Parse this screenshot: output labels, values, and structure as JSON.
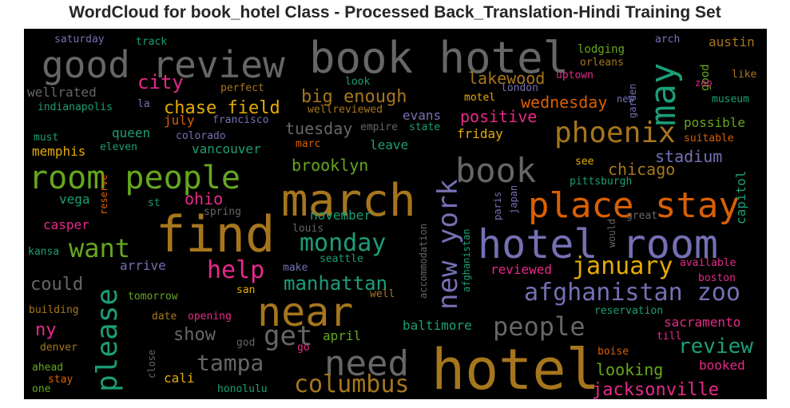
{
  "title": "WordCloud for book_hotel Class - Processed Back_Translation-Hindi Training Set",
  "chart_data": {
    "type": "wordcloud",
    "title": "WordCloud for book_hotel Class - Processed Back_Translation-Hindi Training Set",
    "background": "#000000",
    "colormap": "Dark2",
    "words": [
      {
        "text": "hotel",
        "weight": 1.0,
        "color": "#a6761d"
      },
      {
        "text": "find",
        "weight": 0.9,
        "color": "#a6761d"
      },
      {
        "text": "book hotel",
        "weight": 0.87,
        "color": "#666666"
      },
      {
        "text": "march",
        "weight": 0.85,
        "color": "#a6761d"
      },
      {
        "text": "hotel room",
        "weight": 0.8,
        "color": "#7570b3"
      },
      {
        "text": "near",
        "weight": 0.77,
        "color": "#a6761d"
      },
      {
        "text": "good review",
        "weight": 0.72,
        "color": "#666666"
      },
      {
        "text": "place stay",
        "weight": 0.68,
        "color": "#d95f02"
      },
      {
        "text": "room people",
        "weight": 0.65,
        "color": "#66a61e"
      },
      {
        "text": "need",
        "weight": 0.63,
        "color": "#666666"
      },
      {
        "text": "book",
        "weight": 0.62,
        "color": "#666666"
      },
      {
        "text": "may",
        "weight": 0.61,
        "color": "#1b9e77"
      },
      {
        "text": "phoenix",
        "weight": 0.56,
        "color": "#a6761d"
      },
      {
        "text": "please",
        "weight": 0.53,
        "color": "#1b9e77"
      },
      {
        "text": "new york",
        "weight": 0.52,
        "color": "#7570b3"
      },
      {
        "text": "afghanistan zoo",
        "weight": 0.47,
        "color": "#7570b3"
      },
      {
        "text": "want",
        "weight": 0.47,
        "color": "#66a61e"
      },
      {
        "text": "people",
        "weight": 0.46,
        "color": "#666666"
      },
      {
        "text": "get",
        "weight": 0.46,
        "color": "#666666"
      },
      {
        "text": "january",
        "weight": 0.44,
        "color": "#e6ab02"
      },
      {
        "text": "columbus",
        "weight": 0.44,
        "color": "#a6761d"
      },
      {
        "text": "help",
        "weight": 0.44,
        "color": "#e7298a"
      },
      {
        "text": "monday",
        "weight": 0.43,
        "color": "#1b9e77"
      },
      {
        "text": "tampa",
        "weight": 0.42,
        "color": "#666666"
      },
      {
        "text": "review",
        "weight": 0.41,
        "color": "#1b9e77"
      },
      {
        "text": "manhattan",
        "weight": 0.39,
        "color": "#1b9e77"
      },
      {
        "text": "jacksonville",
        "weight": 0.39,
        "color": "#e7298a"
      },
      {
        "text": "city",
        "weight": 0.39,
        "color": "#e7298a"
      },
      {
        "text": "big enough",
        "weight": 0.38,
        "color": "#a6761d"
      },
      {
        "text": "chase field",
        "weight": 0.38,
        "color": "#e6ab02"
      },
      {
        "text": "lakewood",
        "weight": 0.36,
        "color": "#a6761d"
      },
      {
        "text": "looking",
        "weight": 0.36,
        "color": "#66a61e"
      },
      {
        "text": "positive",
        "weight": 0.35,
        "color": "#e7298a"
      },
      {
        "text": "wednesday",
        "weight": 0.35,
        "color": "#d95f02"
      },
      {
        "text": "tuesday",
        "weight": 0.35,
        "color": "#666666"
      },
      {
        "text": "ny",
        "weight": 0.35,
        "color": "#e7298a"
      },
      {
        "text": "could",
        "weight": 0.35,
        "color": "#666666"
      },
      {
        "text": "stadium",
        "weight": 0.34,
        "color": "#7570b3"
      },
      {
        "text": "chicago",
        "weight": 0.34,
        "color": "#a6761d"
      },
      {
        "text": "show",
        "weight": 0.34,
        "color": "#666666"
      },
      {
        "text": "ohio",
        "weight": 0.34,
        "color": "#e7298a"
      },
      {
        "text": "brooklyn",
        "weight": 0.32,
        "color": "#66a61e"
      },
      {
        "text": "austin",
        "weight": 0.3,
        "color": "#a6761d"
      },
      {
        "text": "good",
        "weight": 0.3,
        "color": "#66a61e"
      },
      {
        "text": "reviewed",
        "weight": 0.3,
        "color": "#e7298a"
      },
      {
        "text": "baltimore",
        "weight": 0.3,
        "color": "#1b9e77"
      },
      {
        "text": "sacramento",
        "weight": 0.3,
        "color": "#e7298a"
      },
      {
        "text": "booked",
        "weight": 0.3,
        "color": "#e7298a"
      },
      {
        "text": "capitol",
        "weight": 0.3,
        "color": "#1b9e77"
      },
      {
        "text": "possible",
        "weight": 0.28,
        "color": "#66a61e"
      },
      {
        "text": "evans",
        "weight": 0.28,
        "color": "#7570b3"
      },
      {
        "text": "leave",
        "weight": 0.28,
        "color": "#1b9e77"
      },
      {
        "text": "friday",
        "weight": 0.28,
        "color": "#e6ab02"
      },
      {
        "text": "queen",
        "weight": 0.28,
        "color": "#1b9e77"
      },
      {
        "text": "memphis",
        "weight": 0.28,
        "color": "#e6ab02"
      },
      {
        "text": "vancouver",
        "weight": 0.28,
        "color": "#1b9e77"
      },
      {
        "text": "wellrated",
        "weight": 0.28,
        "color": "#666666"
      },
      {
        "text": "vega",
        "weight": 0.28,
        "color": "#1b9e77"
      },
      {
        "text": "casper",
        "weight": 0.28,
        "color": "#e7298a"
      },
      {
        "text": "arrive",
        "weight": 0.28,
        "color": "#7570b3"
      },
      {
        "text": "november",
        "weight": 0.28,
        "color": "#1b9e77"
      },
      {
        "text": "april",
        "weight": 0.28,
        "color": "#66a61e"
      },
      {
        "text": "cali",
        "weight": 0.28,
        "color": "#e6ab02"
      },
      {
        "text": "july",
        "weight": 0.27,
        "color": "#d95f02"
      },
      {
        "text": "lodging",
        "weight": 0.25,
        "color": "#66a61e"
      },
      {
        "text": "orleans",
        "weight": 0.25,
        "color": "#a6761d"
      },
      {
        "text": "uptown",
        "weight": 0.25,
        "color": "#e7298a"
      },
      {
        "text": "garden",
        "weight": 0.25,
        "color": "#7570b3"
      },
      {
        "text": "museum",
        "weight": 0.25,
        "color": "#1b9e77"
      },
      {
        "text": "like",
        "weight": 0.25,
        "color": "#a6761d"
      },
      {
        "text": "zoo",
        "weight": 0.25,
        "color": "#e7298a"
      },
      {
        "text": "arch",
        "weight": 0.25,
        "color": "#7570b3"
      },
      {
        "text": "suitable",
        "weight": 0.25,
        "color": "#d95f02"
      },
      {
        "text": "pittsburgh",
        "weight": 0.25,
        "color": "#1b9e77"
      },
      {
        "text": "available",
        "weight": 0.25,
        "color": "#e7298a"
      },
      {
        "text": "boston",
        "weight": 0.25,
        "color": "#e7298a"
      },
      {
        "text": "reservation",
        "weight": 0.25,
        "color": "#1b9e77"
      },
      {
        "text": "till",
        "weight": 0.25,
        "color": "#e7298a"
      },
      {
        "text": "boise",
        "weight": 0.25,
        "color": "#d95f02"
      },
      {
        "text": "see",
        "weight": 0.25,
        "color": "#e6ab02"
      },
      {
        "text": "great",
        "weight": 0.25,
        "color": "#666666"
      },
      {
        "text": "new",
        "weight": 0.25,
        "color": "#7570b3"
      },
      {
        "text": "would",
        "weight": 0.25,
        "color": "#666666"
      },
      {
        "text": "paris",
        "weight": 0.25,
        "color": "#7570b3"
      },
      {
        "text": "japan",
        "weight": 0.25,
        "color": "#7570b3"
      },
      {
        "text": "afghanistan",
        "weight": 0.25,
        "color": "#1b9e77"
      },
      {
        "text": "accommodation",
        "weight": 0.25,
        "color": "#666666"
      },
      {
        "text": "motel",
        "weight": 0.25,
        "color": "#e6ab02"
      },
      {
        "text": "london",
        "weight": 0.25,
        "color": "#7570b3"
      },
      {
        "text": "look",
        "weight": 0.25,
        "color": "#1b9e77"
      },
      {
        "text": "wellreviewed",
        "weight": 0.25,
        "color": "#a6761d"
      },
      {
        "text": "empire",
        "weight": 0.25,
        "color": "#666666"
      },
      {
        "text": "state",
        "weight": 0.25,
        "color": "#1b9e77"
      },
      {
        "text": "marc",
        "weight": 0.25,
        "color": "#d95f02"
      },
      {
        "text": "saturday",
        "weight": 0.25,
        "color": "#7570b3"
      },
      {
        "text": "track",
        "weight": 0.25,
        "color": "#1b9e77"
      },
      {
        "text": "perfect",
        "weight": 0.25,
        "color": "#a6761d"
      },
      {
        "text": "indianapolis",
        "weight": 0.25,
        "color": "#1b9e77"
      },
      {
        "text": "la",
        "weight": 0.25,
        "color": "#7570b3"
      },
      {
        "text": "francisco",
        "weight": 0.25,
        "color": "#7570b3"
      },
      {
        "text": "must",
        "weight": 0.25,
        "color": "#1b9e77"
      },
      {
        "text": "eleven",
        "weight": 0.25,
        "color": "#1b9e77"
      },
      {
        "text": "colorado",
        "weight": 0.25,
        "color": "#7570b3"
      },
      {
        "text": "reserve",
        "weight": 0.25,
        "color": "#d95f02"
      },
      {
        "text": "st",
        "weight": 0.25,
        "color": "#1b9e77"
      },
      {
        "text": "spring",
        "weight": 0.25,
        "color": "#666666"
      },
      {
        "text": "kansa",
        "weight": 0.25,
        "color": "#1b9e77"
      },
      {
        "text": "louis",
        "weight": 0.25,
        "color": "#666666"
      },
      {
        "text": "seattle",
        "weight": 0.25,
        "color": "#1b9e77"
      },
      {
        "text": "make",
        "weight": 0.25,
        "color": "#7570b3"
      },
      {
        "text": "san",
        "weight": 0.25,
        "color": "#e6ab02"
      },
      {
        "text": "well",
        "weight": 0.25,
        "color": "#a6761d"
      },
      {
        "text": "tomorrow",
        "weight": 0.25,
        "color": "#66a61e"
      },
      {
        "text": "building",
        "weight": 0.25,
        "color": "#a6761d"
      },
      {
        "text": "date",
        "weight": 0.25,
        "color": "#a6761d"
      },
      {
        "text": "opening",
        "weight": 0.25,
        "color": "#e7298a"
      },
      {
        "text": "god",
        "weight": 0.25,
        "color": "#666666"
      },
      {
        "text": "go",
        "weight": 0.25,
        "color": "#e7298a"
      },
      {
        "text": "denver",
        "weight": 0.25,
        "color": "#a6761d"
      },
      {
        "text": "close",
        "weight": 0.25,
        "color": "#666666"
      },
      {
        "text": "ahead",
        "weight": 0.25,
        "color": "#66a61e"
      },
      {
        "text": "stay",
        "weight": 0.25,
        "color": "#d95f02"
      },
      {
        "text": "one",
        "weight": 0.25,
        "color": "#66a61e"
      },
      {
        "text": "honolulu",
        "weight": 0.25,
        "color": "#1b9e77"
      }
    ]
  }
}
